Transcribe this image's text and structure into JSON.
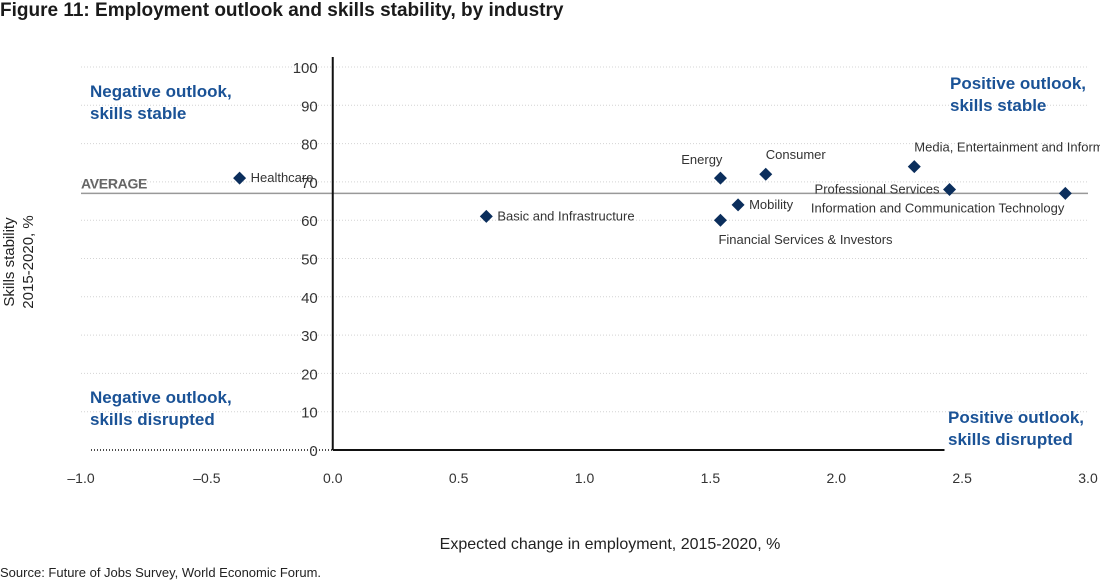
{
  "title": "Figure 11: Employment outlook and skills stability, by industry",
  "source": "Source: Future of Jobs Survey, World Economic Forum.",
  "colors": {
    "marker": "#0b2e5c",
    "quadrant_text": "#1a5296",
    "grid": "#d4d4d4",
    "axis": "#111111",
    "average_line": "#999999",
    "text": "#333333"
  },
  "chart_data": {
    "type": "scatter",
    "title": "Figure 11: Employment outlook and skills stability, by industry",
    "xlabel": "Expected change in employment, 2015-2020, %",
    "ylabel_lines": [
      "Skills stability",
      "2015-2020, %"
    ],
    "xlim": [
      -1.0,
      3.0
    ],
    "ylim": [
      0,
      100
    ],
    "x_ticks": [
      -1.0,
      -0.5,
      0.0,
      0.5,
      1.0,
      1.5,
      2.0,
      2.5,
      3.0
    ],
    "x_tick_labels": [
      "–1.0",
      "–0.5",
      "0.0",
      "0.5",
      "1.0",
      "1.5",
      "2.0",
      "2.5",
      "3.0"
    ],
    "y_ticks": [
      0,
      10,
      20,
      30,
      40,
      50,
      60,
      70,
      80,
      90,
      100
    ],
    "y_tick_labels": [
      "0",
      "10",
      "20",
      "30",
      "40",
      "50",
      "60",
      "70",
      "80",
      "90",
      "100"
    ],
    "grid": true,
    "average": {
      "label": "AVERAGE",
      "value": 67
    },
    "quadrants": [
      {
        "lines": [
          "Negative outlook,",
          "skills stable"
        ],
        "position": "top-left"
      },
      {
        "lines": [
          "Positive outlook,",
          "skills stable"
        ],
        "position": "top-right"
      },
      {
        "lines": [
          "Negative outlook,",
          "skills disrupted"
        ],
        "position": "bottom-left"
      },
      {
        "lines": [
          "Positive outlook,",
          "skills disrupted"
        ],
        "position": "bottom-right"
      }
    ],
    "points": [
      {
        "name": "Healthcare",
        "x": -0.37,
        "y": 71,
        "label_pos": "right"
      },
      {
        "name": "Basic and Infrastructure",
        "x": 0.61,
        "y": 61,
        "label_pos": "right"
      },
      {
        "name": "Energy",
        "x": 1.54,
        "y": 71,
        "label_pos": "above-left"
      },
      {
        "name": "Consumer",
        "x": 1.72,
        "y": 72,
        "label_pos": "above-right"
      },
      {
        "name": "Mobility",
        "x": 1.61,
        "y": 64,
        "label_pos": "right"
      },
      {
        "name": "Financial Services & Investors",
        "x": 1.54,
        "y": 60,
        "label_pos": "below-right"
      },
      {
        "name": "Media, Entertainment and Information",
        "x": 2.31,
        "y": 74,
        "label_pos": "above-right"
      },
      {
        "name": "Professional Services",
        "x": 2.45,
        "y": 68,
        "label_pos": "left"
      },
      {
        "name": "Information and Communication Technology",
        "x": 2.91,
        "y": 67,
        "label_pos": "below-left"
      }
    ]
  }
}
